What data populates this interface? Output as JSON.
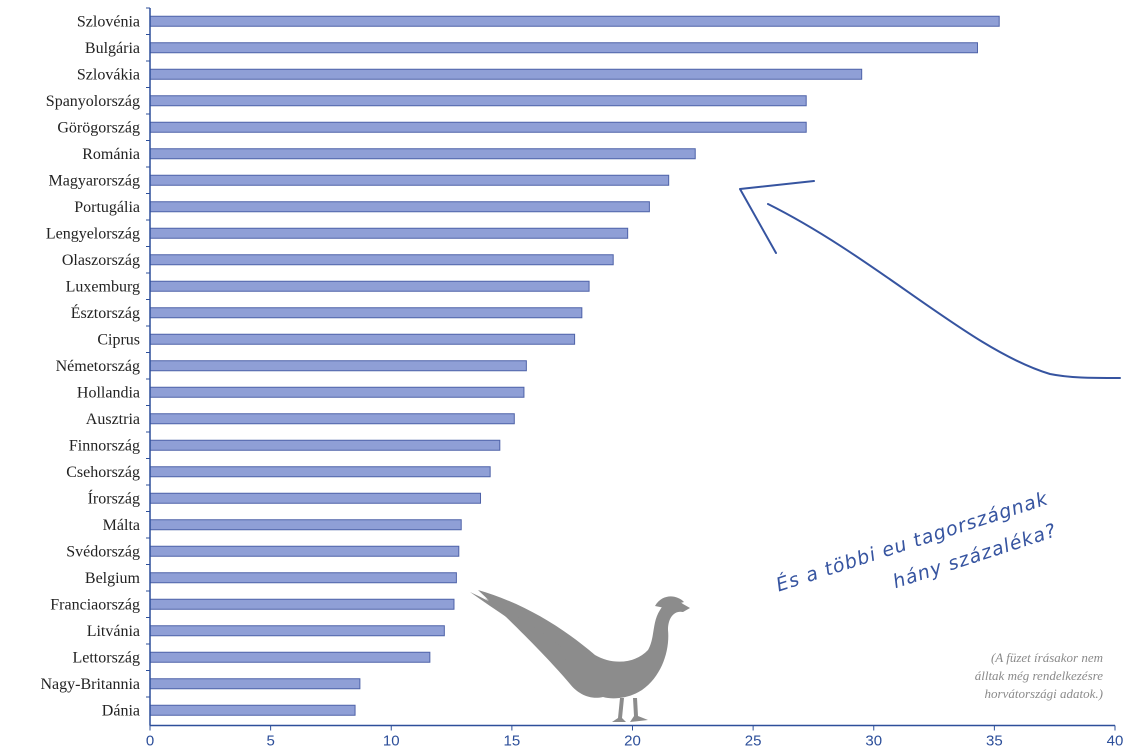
{
  "chart_data": {
    "type": "bar",
    "orientation": "horizontal",
    "categories": [
      "Szlovénia",
      "Bulgária",
      "Szlovákia",
      "Spanyolország",
      "Görögország",
      "Románia",
      "Magyarország",
      "Portugália",
      "Lengyelország",
      "Olaszország",
      "Luxemburg",
      "Észtország",
      "Ciprus",
      "Németország",
      "Hollandia",
      "Ausztria",
      "Finnország",
      "Csehország",
      "Írország",
      "Málta",
      "Svédország",
      "Belgium",
      "Franciaország",
      "Litvánia",
      "Lettország",
      "Nagy-Britannia",
      "Dánia"
    ],
    "values": [
      35.2,
      34.3,
      29.5,
      27.2,
      27.2,
      22.6,
      21.5,
      20.7,
      19.8,
      19.2,
      18.2,
      17.9,
      17.6,
      15.6,
      15.5,
      15.1,
      14.5,
      14.1,
      13.7,
      12.9,
      12.8,
      12.7,
      12.6,
      12.2,
      11.6,
      8.7,
      8.5
    ],
    "xlim": [
      0,
      40
    ],
    "xticks": [
      "0",
      "5",
      "10",
      "15",
      "20",
      "25",
      "30",
      "35",
      "40"
    ],
    "xlabel": "",
    "ylabel": "",
    "title": "",
    "grid": false,
    "bar_color": "#8f9fd6",
    "bar_stroke": "#4e62a8",
    "axis_color": "#2d4f9a"
  },
  "annotation": {
    "line1": "És a többi eu tagországnak",
    "line2": "hány százaléka?",
    "color": "#3654a0"
  },
  "note": {
    "line1": "(A füzet írásakor nem",
    "line2": "álltak még rendelkezésre",
    "line3": "horvátországi adatok.)"
  },
  "decoration": {
    "icon": "pheasant-silhouette-icon",
    "color": "#8c8c8c"
  }
}
